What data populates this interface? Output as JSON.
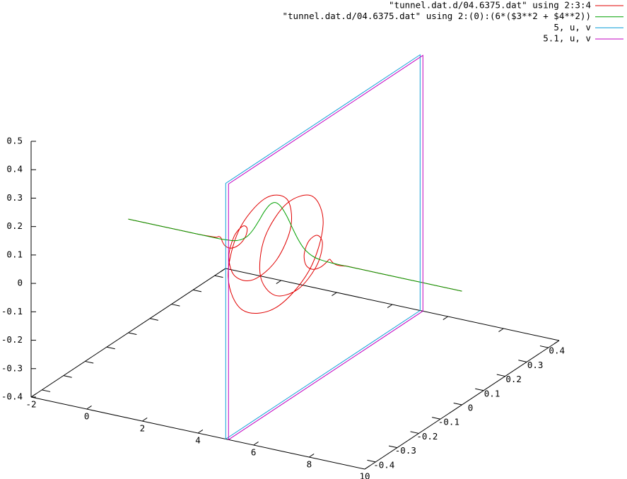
{
  "chart_data": {
    "type": "line3d",
    "xlim": [
      -2,
      10
    ],
    "ylim": [
      -0.45,
      0.45
    ],
    "zlim": [
      -0.4,
      0.5
    ],
    "xticks": [
      -2,
      0,
      2,
      4,
      6,
      8,
      10
    ],
    "yticks": [
      -0.4,
      -0.3,
      -0.2,
      -0.1,
      0,
      0.1,
      0.2,
      0.3,
      0.4
    ],
    "zticks": [
      -0.4,
      -0.3,
      -0.2,
      -0.1,
      0,
      0.1,
      0.2,
      0.3,
      0.4,
      0.5
    ],
    "legend": "top-right",
    "series": [
      {
        "name": "\"tunnel.dat.d/04.6375.dat\" using 2:3:4",
        "color": "#e00000",
        "x": [
          -2,
          0,
          0.5,
          1.1,
          1.2,
          1.3,
          1.4,
          1.5,
          1.6,
          1.7,
          1.8,
          1.9,
          2.0,
          2.1,
          2.2,
          2.3,
          2.4,
          2.5,
          2.6,
          2.7,
          2.8,
          2.9,
          3.0,
          3.1,
          3.2,
          3.3,
          3.4,
          3.5,
          3.6,
          3.7,
          3.8,
          3.9,
          4.0,
          4.1,
          4.2,
          4.3,
          4.4,
          4.5,
          4.6,
          4.7,
          4.8,
          4.9,
          5.0,
          5.1,
          5.2,
          5.3,
          5.4,
          5.5,
          5.6,
          5.7,
          5.8,
          5.9,
          7,
          10
        ],
        "y": [
          0,
          0,
          0,
          0.004,
          0.004,
          0,
          -0.007,
          -0.014,
          -0.013,
          0,
          0.022,
          0.04,
          0.035,
          0,
          -0.052,
          -0.088,
          -0.072,
          0,
          0.094,
          0.148,
          0.115,
          0,
          -0.132,
          -0.194,
          -0.14,
          0,
          0.14,
          0.194,
          0.132,
          0,
          -0.115,
          -0.148,
          -0.094,
          0,
          0.072,
          0.088,
          0.052,
          0,
          -0.035,
          -0.04,
          -0.022,
          0,
          0.013,
          0.014,
          0.007,
          0,
          -0.004,
          -0.004,
          -0.002,
          0,
          0.001,
          0.001,
          0,
          0
        ],
        "z": [
          0,
          0,
          0,
          0,
          0.004,
          0.007,
          0.007,
          0,
          -0.013,
          -0.024,
          -0.022,
          0,
          0.035,
          0.061,
          0.052,
          0,
          -0.072,
          -0.118,
          -0.094,
          0,
          0.115,
          0.175,
          0.132,
          0,
          -0.14,
          -0.2,
          -0.14,
          0,
          0.132,
          0.175,
          0.115,
          0,
          -0.094,
          -0.118,
          -0.072,
          0,
          0.052,
          0.061,
          0.035,
          0,
          -0.022,
          -0.024,
          -0.013,
          0,
          0.007,
          0.007,
          0.004,
          0,
          -0.002,
          -0.002,
          -0.001,
          0,
          0,
          0
        ]
      },
      {
        "name": "\"tunnel.dat.d/04.6375.dat\" using 2:(0):(6*($3**2 + $4**2))",
        "color": "#00a000",
        "x": [
          -2,
          0,
          1,
          1.3,
          1.7,
          1.9,
          2.1,
          2.3,
          2.5,
          2.7,
          2.9,
          3.1,
          3.3,
          3.5,
          3.7,
          3.9,
          4.1,
          4.3,
          4.5,
          4.7,
          4.9,
          5.3,
          6,
          8,
          10
        ],
        "y": [
          0,
          0,
          0,
          0,
          0,
          0,
          0,
          0,
          0,
          0,
          0,
          0,
          0,
          0,
          0,
          0,
          0,
          0,
          0,
          0,
          0,
          0,
          0,
          0,
          0
        ],
        "z": [
          0,
          0,
          0,
          0,
          0.003,
          0.007,
          0.016,
          0.032,
          0.059,
          0.094,
          0.131,
          0.159,
          0.17,
          0.159,
          0.131,
          0.094,
          0.059,
          0.032,
          0.016,
          0.007,
          0.003,
          0,
          0,
          0,
          0
        ]
      },
      {
        "name": "5, u, v",
        "color": "#10a0d8",
        "x": [
          5,
          5,
          5,
          5,
          5
        ],
        "y": [
          -0.45,
          0.45,
          0.45,
          -0.45,
          -0.45
        ],
        "z": [
          -0.4,
          -0.4,
          0.5,
          0.5,
          -0.4
        ]
      },
      {
        "name": "5.1, u, v",
        "color": "#c000c0",
        "x": [
          5.1,
          5.1,
          5.1,
          5.1,
          5.1
        ],
        "y": [
          -0.45,
          0.45,
          0.45,
          -0.45,
          -0.45
        ],
        "z": [
          -0.4,
          -0.4,
          0.5,
          0.5,
          -0.4
        ]
      }
    ]
  }
}
